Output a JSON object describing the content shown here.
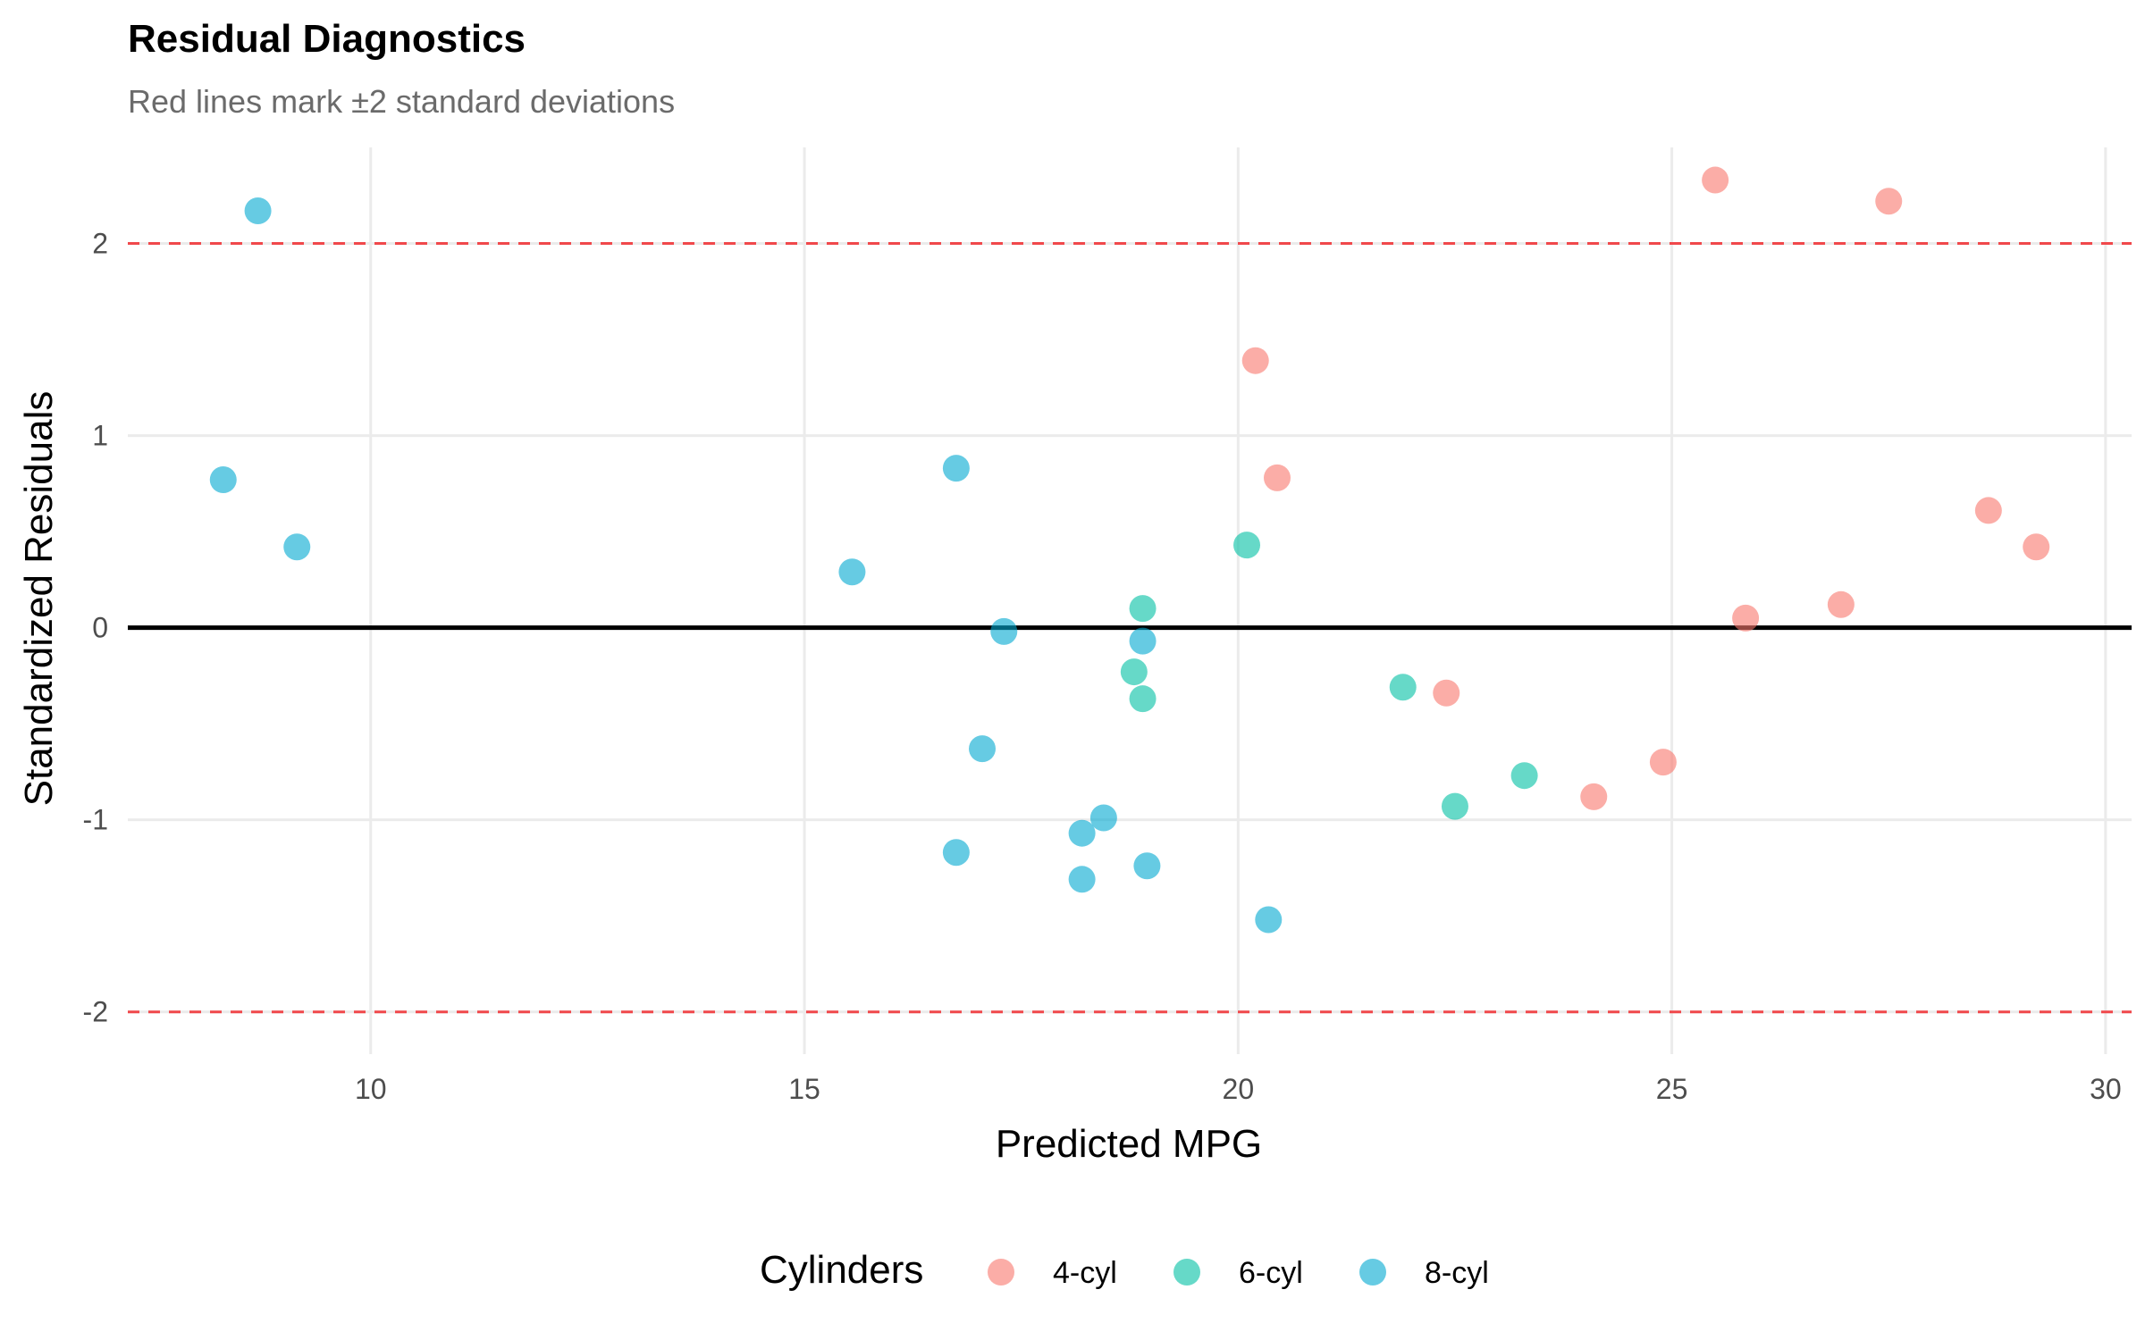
{
  "chart_data": {
    "type": "scatter",
    "title": "Residual Diagnostics",
    "subtitle": "Red lines mark ±2 standard deviations",
    "xlabel": "Predicted MPG",
    "ylabel": "Standardized Residuals",
    "xlim": [
      7.2,
      30.3
    ],
    "ylim": [
      -2.22,
      2.5
    ],
    "x_ticks": [
      10,
      15,
      20,
      25,
      30
    ],
    "y_ticks": [
      -2,
      -1,
      0,
      1,
      2
    ],
    "x_tick_labels": [
      "10",
      "15",
      "20",
      "25",
      "30"
    ],
    "y_tick_labels": [
      "-2",
      "-1",
      "0",
      "1",
      "2"
    ],
    "grid": true,
    "reference_lines": [
      {
        "y": 2,
        "style": "dashed",
        "color": "#f0484b"
      },
      {
        "y": -2,
        "style": "dashed",
        "color": "#f0484b"
      },
      {
        "y": 0,
        "style": "solid",
        "color": "#000000"
      }
    ],
    "legend": {
      "title": "Cylinders",
      "position": "bottom"
    },
    "series": [
      {
        "name": "4-cyl",
        "color": "#f8766d",
        "points": [
          {
            "x": 25.5,
            "y": 2.33
          },
          {
            "x": 27.5,
            "y": 2.22
          },
          {
            "x": 20.2,
            "y": 1.39
          },
          {
            "x": 20.45,
            "y": 0.78
          },
          {
            "x": 28.65,
            "y": 0.61
          },
          {
            "x": 29.2,
            "y": 0.42
          },
          {
            "x": 26.95,
            "y": 0.12
          },
          {
            "x": 25.85,
            "y": 0.05
          },
          {
            "x": 22.4,
            "y": -0.34
          },
          {
            "x": 24.9,
            "y": -0.7
          },
          {
            "x": 24.1,
            "y": -0.88
          }
        ]
      },
      {
        "name": "6-cyl",
        "color": "#00bfa4",
        "points": [
          {
            "x": 20.1,
            "y": 0.43
          },
          {
            "x": 18.9,
            "y": 0.1
          },
          {
            "x": 18.8,
            "y": -0.23
          },
          {
            "x": 18.9,
            "y": -0.37
          },
          {
            "x": 21.9,
            "y": -0.31
          },
          {
            "x": 23.3,
            "y": -0.77
          },
          {
            "x": 22.5,
            "y": -0.93
          }
        ]
      },
      {
        "name": "8-cyl",
        "color": "#00a9d0",
        "points": [
          {
            "x": 8.7,
            "y": 2.17
          },
          {
            "x": 8.3,
            "y": 0.77
          },
          {
            "x": 9.15,
            "y": 0.42
          },
          {
            "x": 16.75,
            "y": 0.83
          },
          {
            "x": 15.55,
            "y": 0.29
          },
          {
            "x": 17.3,
            "y": -0.02
          },
          {
            "x": 18.9,
            "y": -0.07
          },
          {
            "x": 17.05,
            "y": -0.63
          },
          {
            "x": 18.45,
            "y": -0.99
          },
          {
            "x": 18.2,
            "y": -1.07
          },
          {
            "x": 16.75,
            "y": -1.17
          },
          {
            "x": 18.95,
            "y": -1.24
          },
          {
            "x": 18.2,
            "y": -1.31
          },
          {
            "x": 20.35,
            "y": -1.52
          }
        ]
      }
    ]
  }
}
